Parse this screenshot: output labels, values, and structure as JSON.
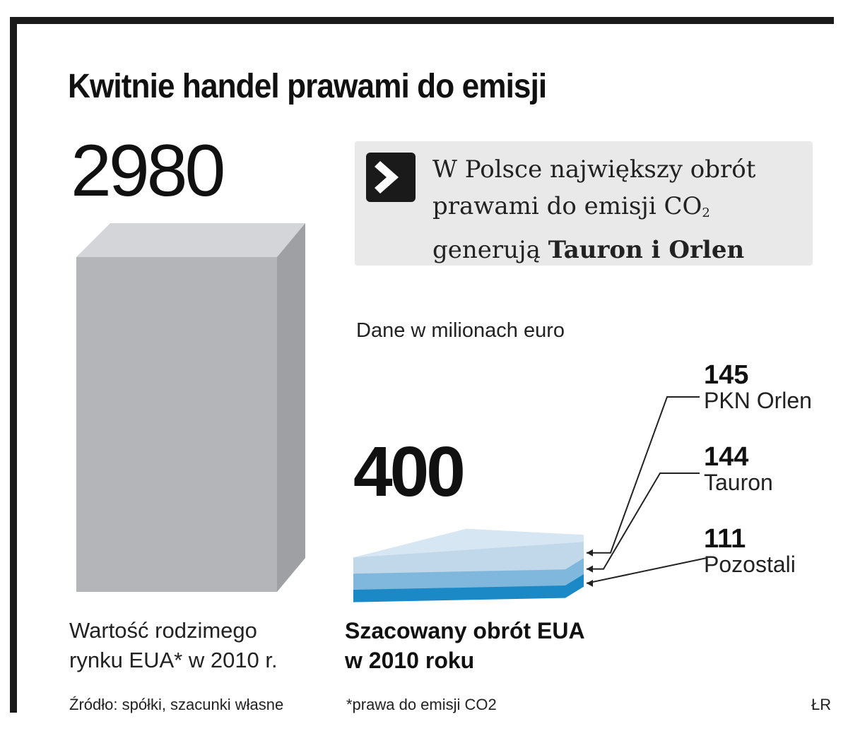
{
  "title": "Kwitnie handel prawami do emisji",
  "callout": {
    "line1": "W Polsce największy obrót",
    "line2_pre": "prawami do emisji CO",
    "line2_sub": "2",
    "line3_pre": "generują ",
    "line3_bold": "Tauron i Orlen"
  },
  "units_note": "Dane w milionach euro",
  "chart_data": {
    "type": "bar",
    "units": "milionach euro",
    "bars": [
      {
        "label": "Wartość rodzimego rynku EUA* w 2010 r.",
        "value": 2980,
        "value_label": "2980"
      },
      {
        "label": "Szacowany obrót EUA w 2010 roku",
        "value": 400,
        "value_label": "400",
        "segments": [
          {
            "name": "PKN Orlen",
            "value": 145,
            "value_label": "145"
          },
          {
            "name": "Tauron",
            "value": 144,
            "value_label": "144"
          },
          {
            "name": "Pozostali",
            "value": 111,
            "value_label": "111"
          }
        ]
      }
    ],
    "colors": {
      "market_front": "#b4b5b9",
      "market_top": "#d4d5d8",
      "market_side": "#9fa0a4",
      "orlen": "#c0d8ea",
      "tauron": "#7fb8dc",
      "pozostali": "#1a89c6"
    }
  },
  "captions": {
    "market_line1": "Wartość rodzimego",
    "market_line2": "rynku EUA* w 2010 r.",
    "turnover_line1": "Szacowany obrót EUA",
    "turnover_line2": "w 2010 roku"
  },
  "footer": {
    "source": "Źródło: spółki, szacunki własne",
    "note": "*prawa do emisji CO2",
    "credit": "ŁR"
  }
}
